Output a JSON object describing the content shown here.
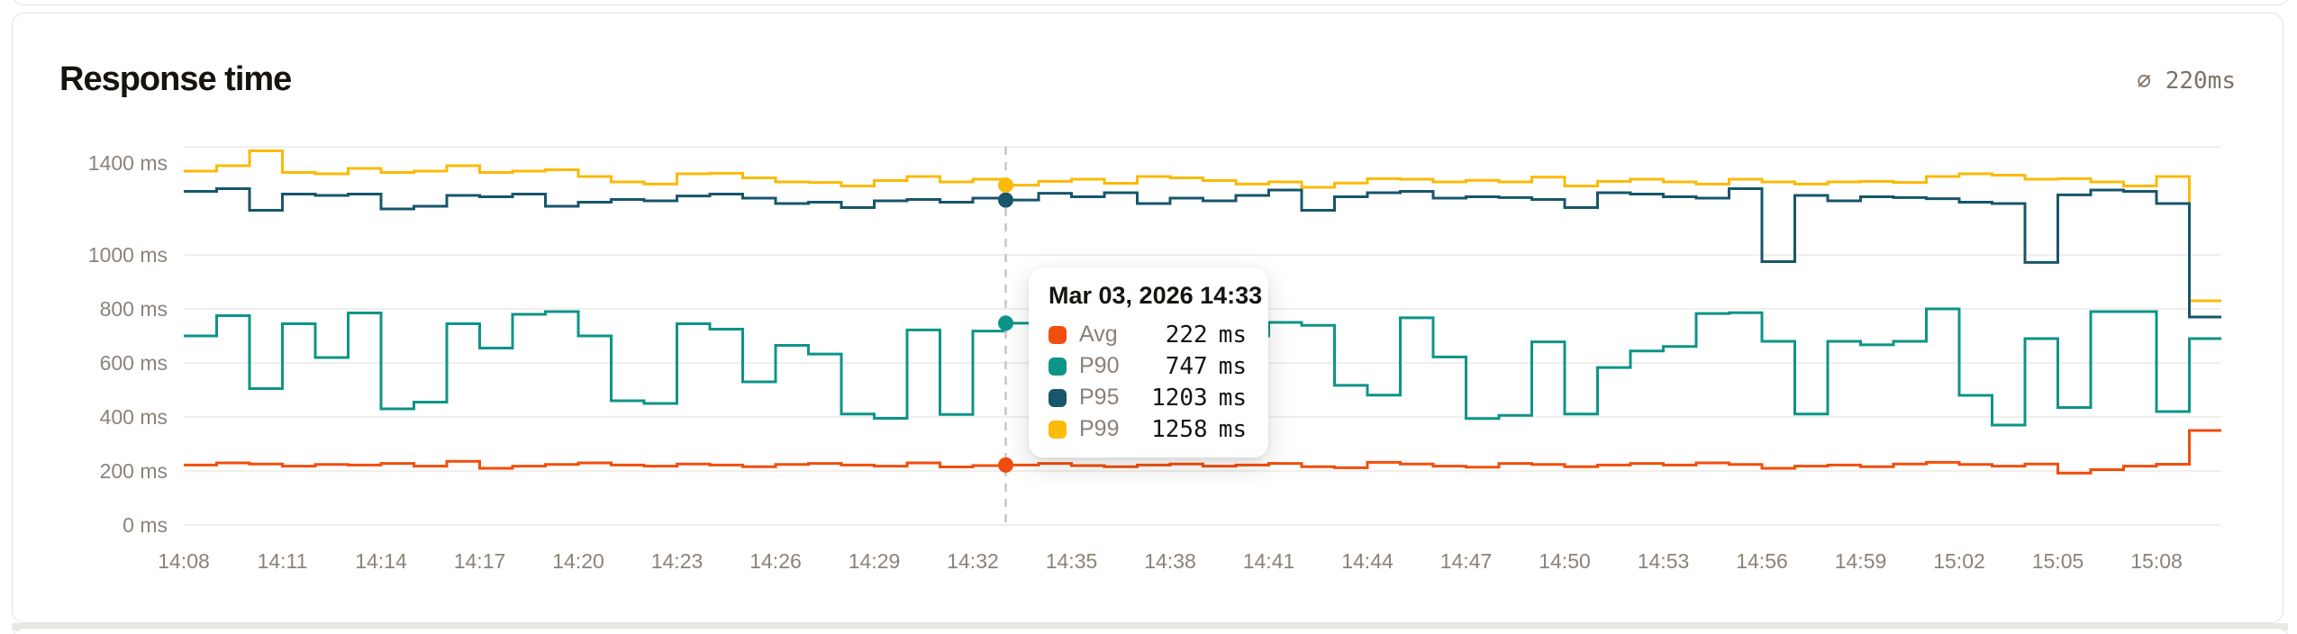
{
  "card": {
    "title": "Response time",
    "summary": "∅ 220ms"
  },
  "colors": {
    "avg": "#F04E0C",
    "p90": "#0D9488",
    "p95": "#17566B",
    "p99": "#FBBA08",
    "gridline": "#f1efec",
    "axis_text": "#8b8379",
    "hover_line": "#c9c6c2"
  },
  "tooltip": {
    "title": "Mar 03, 2026 14:33",
    "hover_time": "14:33",
    "hover_minute_index": 25,
    "rows": [
      {
        "label": "Avg",
        "value": 222,
        "unit": "ms",
        "color": "#F04E0C"
      },
      {
        "label": "P90",
        "value": 747,
        "unit": "ms",
        "color": "#0D9488"
      },
      {
        "label": "P95",
        "value": 1203,
        "unit": "ms",
        "color": "#17566B"
      },
      {
        "label": "P99",
        "value": 1258,
        "unit": "ms",
        "color": "#FBBA08"
      }
    ]
  },
  "chart_data": {
    "type": "line",
    "variant": "step-after",
    "title": "Response time",
    "xlabel": "",
    "ylabel": "ms",
    "ylim": [
      0,
      1400
    ],
    "grid": "horizontal",
    "legend_position": "none (values shown in hover tooltip)",
    "y_ticks": [
      0,
      200,
      400,
      600,
      800,
      1000,
      1400
    ],
    "y_tick_labels": [
      "0 ms",
      "200 ms",
      "400 ms",
      "600 ms",
      "800 ms",
      "1000 ms",
      "1400 ms"
    ],
    "x_tick_labels": [
      "14:08",
      "14:11",
      "14:14",
      "14:17",
      "14:20",
      "14:23",
      "14:26",
      "14:29",
      "14:32",
      "14:35",
      "14:38",
      "14:41",
      "14:44",
      "14:47",
      "14:50",
      "14:53",
      "14:56",
      "14:59",
      "15:02",
      "15:05",
      "15:08"
    ],
    "x_tick_step_minutes": 3,
    "x": [
      "14:08",
      "14:09",
      "14:10",
      "14:11",
      "14:12",
      "14:13",
      "14:14",
      "14:15",
      "14:16",
      "14:17",
      "14:18",
      "14:19",
      "14:20",
      "14:21",
      "14:22",
      "14:23",
      "14:24",
      "14:25",
      "14:26",
      "14:27",
      "14:28",
      "14:29",
      "14:30",
      "14:31",
      "14:32",
      "14:33",
      "14:34",
      "14:35",
      "14:36",
      "14:37",
      "14:38",
      "14:39",
      "14:40",
      "14:41",
      "14:42",
      "14:43",
      "14:44",
      "14:45",
      "14:46",
      "14:47",
      "14:48",
      "14:49",
      "14:50",
      "14:51",
      "14:52",
      "14:53",
      "14:54",
      "14:55",
      "14:56",
      "14:57",
      "14:58",
      "14:59",
      "15:00",
      "15:01",
      "15:02",
      "15:03",
      "15:04",
      "15:05",
      "15:06",
      "15:07",
      "15:08",
      "15:09"
    ],
    "series": [
      {
        "name": "Avg",
        "color": "#F04E0C",
        "values": [
          222,
          230,
          226,
          218,
          224,
          222,
          228,
          218,
          236,
          210,
          218,
          224,
          230,
          222,
          218,
          226,
          222,
          216,
          224,
          228,
          222,
          218,
          230,
          215,
          220,
          222,
          228,
          220,
          216,
          222,
          226,
          218,
          222,
          228,
          216,
          212,
          232,
          226,
          218,
          214,
          228,
          224,
          216,
          222,
          228,
          222,
          230,
          224,
          210,
          218,
          222,
          216,
          226,
          232,
          224,
          218,
          226,
          192,
          205,
          218,
          225,
          350
        ]
      },
      {
        "name": "P90",
        "color": "#0D9488",
        "values": [
          700,
          775,
          505,
          745,
          620,
          785,
          430,
          455,
          745,
          655,
          780,
          790,
          700,
          460,
          450,
          745,
          725,
          530,
          665,
          633,
          411,
          395,
          722,
          409,
          718,
          747,
          657,
          600,
          560,
          620,
          580,
          540,
          700,
          750,
          739,
          517,
          481,
          767,
          622,
          394,
          406,
          678,
          411,
          583,
          644,
          661,
          783,
          786,
          680,
          411,
          680,
          667,
          680,
          800,
          480,
          370,
          690,
          435,
          790,
          790,
          420,
          690
        ]
      },
      {
        "name": "P95",
        "color": "#17566B",
        "values": [
          1235,
          1245,
          1165,
          1225,
          1220,
          1225,
          1170,
          1180,
          1220,
          1215,
          1225,
          1180,
          1195,
          1205,
          1200,
          1218,
          1225,
          1210,
          1190,
          1195,
          1175,
          1200,
          1205,
          1195,
          1210,
          1203,
          1228,
          1215,
          1230,
          1190,
          1210,
          1200,
          1220,
          1240,
          1165,
          1215,
          1230,
          1235,
          1210,
          1215,
          1212,
          1205,
          1175,
          1230,
          1225,
          1215,
          1210,
          1245,
          975,
          1220,
          1200,
          1215,
          1212,
          1208,
          1195,
          1190,
          972,
          1222,
          1240,
          1235,
          1190,
          770
        ]
      },
      {
        "name": "P99",
        "color": "#FBBA08",
        "values": [
          1310,
          1330,
          1385,
          1305,
          1300,
          1320,
          1305,
          1310,
          1330,
          1305,
          1310,
          1315,
          1290,
          1270,
          1262,
          1300,
          1302,
          1285,
          1270,
          1268,
          1255,
          1275,
          1290,
          1270,
          1280,
          1258,
          1272,
          1280,
          1265,
          1290,
          1285,
          1275,
          1262,
          1270,
          1250,
          1266,
          1282,
          1280,
          1270,
          1276,
          1270,
          1288,
          1255,
          1272,
          1280,
          1270,
          1262,
          1280,
          1270,
          1262,
          1270,
          1272,
          1268,
          1290,
          1300,
          1295,
          1280,
          1282,
          1270,
          1255,
          1290,
          830
        ]
      }
    ]
  }
}
